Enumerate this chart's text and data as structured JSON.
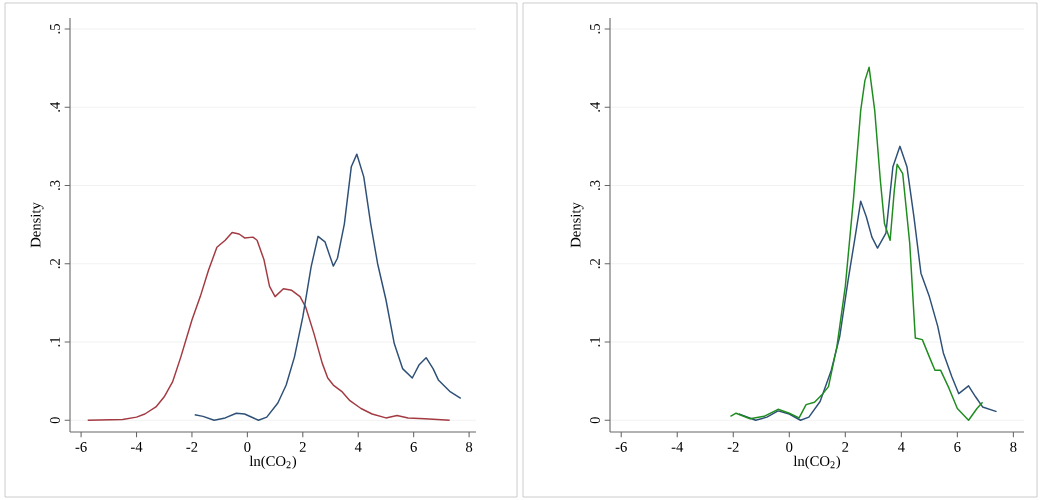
{
  "chart_data": [
    {
      "type": "line",
      "xlabel": "ln(CO$_{2}$)",
      "ylabel": "Density",
      "xlim": [
        -6.4,
        8.25
      ],
      "ylim": [
        -0.015,
        0.514
      ],
      "xticks": [
        -6,
        -4,
        -2,
        0,
        2,
        4,
        6,
        8
      ],
      "yticks": [
        {
          "value": 0,
          "label": "0"
        },
        {
          "value": 0.1,
          "label": ".1"
        },
        {
          "value": 0.2,
          "label": ".2"
        },
        {
          "value": 0.3,
          "label": ".3"
        },
        {
          "value": 0.4,
          "label": ".4"
        },
        {
          "value": 0.5,
          "label": ".5"
        }
      ],
      "grid": "y",
      "series": [
        {
          "color": "#a33a42",
          "x": [
            -5.76,
            -4.5,
            -4.0,
            -3.7,
            -3.3,
            -3.0,
            -2.7,
            -2.4,
            -2.0,
            -1.7,
            -1.4,
            -1.1,
            -0.8,
            -0.55,
            -0.3,
            -0.1,
            0.2,
            0.35,
            0.6,
            0.8,
            1.0,
            1.3,
            1.6,
            1.9,
            2.1,
            2.4,
            2.7,
            2.9,
            3.1,
            3.4,
            3.7,
            4.1,
            4.5,
            5.0,
            5.4,
            5.8,
            6.4,
            7.3
          ],
          "values": [
            0.0,
            0.001,
            0.004,
            0.008,
            0.017,
            0.03,
            0.049,
            0.081,
            0.128,
            0.158,
            0.192,
            0.221,
            0.23,
            0.24,
            0.238,
            0.233,
            0.234,
            0.23,
            0.205,
            0.171,
            0.158,
            0.168,
            0.166,
            0.158,
            0.145,
            0.111,
            0.073,
            0.054,
            0.045,
            0.037,
            0.025,
            0.015,
            0.008,
            0.003,
            0.006,
            0.003,
            0.002,
            0.0
          ]
        },
        {
          "color": "#2e5077",
          "x": [
            -1.9,
            -1.6,
            -1.2,
            -0.8,
            -0.4,
            -0.1,
            0.4,
            0.7,
            1.1,
            1.4,
            1.7,
            2.0,
            2.3,
            2.55,
            2.8,
            3.1,
            3.25,
            3.5,
            3.75,
            3.95,
            4.2,
            4.45,
            4.7,
            5.0,
            5.3,
            5.6,
            5.95,
            6.2,
            6.45,
            6.7,
            6.9,
            7.3,
            7.7
          ],
          "values": [
            0.007,
            0.005,
            0.0,
            0.003,
            0.009,
            0.008,
            0.0,
            0.004,
            0.022,
            0.045,
            0.081,
            0.132,
            0.196,
            0.235,
            0.228,
            0.197,
            0.207,
            0.251,
            0.324,
            0.34,
            0.311,
            0.251,
            0.2,
            0.154,
            0.098,
            0.066,
            0.054,
            0.071,
            0.08,
            0.066,
            0.051,
            0.037,
            0.028
          ]
        }
      ]
    },
    {
      "type": "line",
      "xlabel": "ln(CO$_{2}$)",
      "ylabel": "Density",
      "xlim": [
        -6.4,
        8.38
      ],
      "ylim": [
        -0.015,
        0.514
      ],
      "xticks": [
        -6,
        -4,
        -2,
        0,
        2,
        4,
        6,
        8
      ],
      "yticks": [
        {
          "value": 0,
          "label": "0"
        },
        {
          "value": 0.1,
          "label": ".1"
        },
        {
          "value": 0.2,
          "label": ".2"
        },
        {
          "value": 0.3,
          "label": ".3"
        },
        {
          "value": 0.4,
          "label": ".4"
        },
        {
          "value": 0.5,
          "label": ".5"
        }
      ],
      "grid": "y",
      "series": [
        {
          "color": "#2e5077",
          "x": [
            -1.8,
            -1.2,
            -0.8,
            -0.4,
            0.0,
            0.4,
            0.7,
            1.1,
            1.5,
            1.8,
            2.1,
            2.35,
            2.55,
            2.75,
            2.95,
            3.15,
            3.45,
            3.7,
            3.95,
            4.2,
            4.45,
            4.7,
            5.0,
            5.3,
            5.5,
            5.8,
            6.05,
            6.4,
            6.65,
            6.9,
            7.4
          ],
          "values": [
            0.008,
            0.0,
            0.004,
            0.012,
            0.008,
            0.0,
            0.004,
            0.024,
            0.064,
            0.107,
            0.179,
            0.234,
            0.28,
            0.26,
            0.234,
            0.22,
            0.239,
            0.324,
            0.35,
            0.324,
            0.26,
            0.188,
            0.158,
            0.12,
            0.086,
            0.056,
            0.034,
            0.044,
            0.03,
            0.017,
            0.011
          ]
        },
        {
          "color": "#1f8c1f",
          "x": [
            -2.1,
            -1.9,
            -1.4,
            -0.9,
            -0.4,
            0.0,
            0.35,
            0.6,
            0.9,
            1.2,
            1.4,
            1.7,
            2.0,
            2.3,
            2.55,
            2.7,
            2.85,
            3.05,
            3.25,
            3.4,
            3.6,
            3.75,
            3.85,
            4.05,
            4.3,
            4.5,
            4.75,
            5.0,
            5.2,
            5.4,
            5.7,
            6.0,
            6.4,
            6.7,
            6.9
          ],
          "values": [
            0.005,
            0.009,
            0.002,
            0.005,
            0.014,
            0.009,
            0.003,
            0.02,
            0.023,
            0.034,
            0.043,
            0.094,
            0.171,
            0.286,
            0.396,
            0.434,
            0.451,
            0.396,
            0.307,
            0.251,
            0.23,
            0.294,
            0.327,
            0.315,
            0.226,
            0.105,
            0.103,
            0.081,
            0.064,
            0.064,
            0.041,
            0.015,
            0.0,
            0.015,
            0.023
          ]
        }
      ]
    }
  ]
}
